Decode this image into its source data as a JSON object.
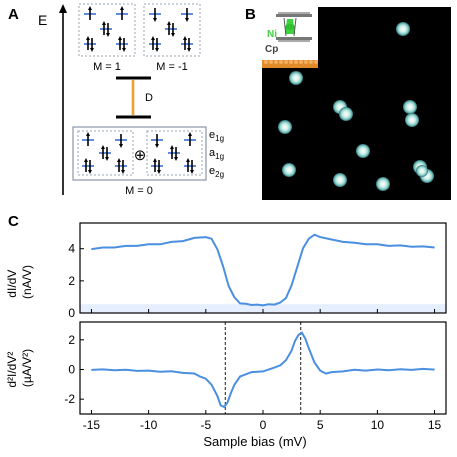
{
  "panels": {
    "a": {
      "letter": "A",
      "energy_axis_label": "E",
      "top_left_label": "M = 1",
      "top_right_label": "M = -1",
      "gap_label": "D",
      "bottom_label": "M = 0",
      "plus_symbol": "⊕",
      "orbital_labels": [
        {
          "main": "e",
          "sub": "1g"
        },
        {
          "main": "a",
          "sub": "1g"
        },
        {
          "main": "e",
          "sub": "2g"
        }
      ],
      "gap_color": "#f0a030",
      "level_color": "#3b6fd4"
    },
    "b": {
      "letter": "B",
      "ni_label": "Ni",
      "cp_label": "Cp",
      "ni_color": "#3fd23f",
      "substrate_color": "#e08a2a",
      "molecule_count_shown": 14
    },
    "c": {
      "letter": "C",
      "x_label": "Sample bias (mV)"
    }
  },
  "chart_data": [
    {
      "type": "line",
      "panel": "C-top",
      "ylabel_lines": [
        "dI/dV",
        "(nA/V)"
      ],
      "xlim": [
        -16,
        16
      ],
      "ylim": [
        0,
        5.6
      ],
      "yticks": [
        0,
        2,
        4
      ],
      "xticks": [
        -15,
        -10,
        -5,
        0,
        5,
        10,
        15
      ],
      "series": [
        {
          "color": "#4a8fe0",
          "x": [
            -15,
            -14,
            -13,
            -12,
            -11,
            -10,
            -9,
            -8,
            -7,
            -6,
            -5,
            -4.5,
            -4,
            -3.5,
            -3,
            -2.5,
            -2,
            -1.5,
            -1,
            -0.5,
            0,
            0.5,
            1,
            1.5,
            2,
            2.5,
            3,
            3.5,
            4,
            4.5,
            5,
            6,
            7,
            8,
            9,
            10,
            11,
            12,
            13,
            14,
            15
          ],
          "y": [
            4.0,
            4.05,
            4.1,
            4.15,
            4.2,
            4.25,
            4.3,
            4.4,
            4.5,
            4.65,
            4.75,
            4.6,
            4.0,
            2.9,
            1.7,
            0.95,
            0.62,
            0.55,
            0.52,
            0.5,
            0.5,
            0.52,
            0.55,
            0.62,
            0.95,
            1.7,
            2.9,
            4.0,
            4.65,
            4.85,
            4.75,
            4.55,
            4.45,
            4.35,
            4.3,
            4.25,
            4.2,
            4.18,
            4.15,
            4.12,
            4.1
          ]
        }
      ]
    },
    {
      "type": "line",
      "panel": "C-bottom",
      "ylabel_lines": [
        "d²I/dV²",
        "(µA/V²)"
      ],
      "xlim": [
        -16,
        16
      ],
      "ylim": [
        -3.0,
        3.2
      ],
      "yticks": [
        -2,
        0,
        2
      ],
      "xticks": [
        -15,
        -10,
        -5,
        0,
        5,
        10,
        15
      ],
      "dashed_markers_x": [
        -3.3,
        3.3
      ],
      "series": [
        {
          "color": "#4a8fe0",
          "x": [
            -15,
            -14,
            -13,
            -12,
            -11,
            -10,
            -9,
            -8,
            -7,
            -6,
            -5.5,
            -5,
            -4.5,
            -4,
            -3.7,
            -3.4,
            -3.1,
            -2.8,
            -2.5,
            -2,
            -1.5,
            -1,
            0,
            1,
            1.5,
            2,
            2.5,
            2.8,
            3.1,
            3.4,
            3.7,
            4,
            4.5,
            5,
            5.5,
            6,
            7,
            8,
            9,
            10,
            11,
            12,
            13,
            14,
            15
          ],
          "y": [
            0.0,
            -0.02,
            -0.03,
            -0.05,
            -0.07,
            -0.1,
            -0.12,
            -0.15,
            -0.2,
            -0.3,
            -0.45,
            -0.65,
            -1.0,
            -1.8,
            -2.4,
            -2.55,
            -2.2,
            -1.6,
            -1.0,
            -0.5,
            -0.3,
            -0.2,
            -0.1,
            0.1,
            0.3,
            0.6,
            1.3,
            1.9,
            2.35,
            2.45,
            2.1,
            1.4,
            0.5,
            -0.1,
            -0.25,
            -0.2,
            -0.1,
            -0.05,
            -0.05,
            -0.03,
            -0.02,
            -0.01,
            0.0,
            0.01,
            0.02
          ]
        }
      ]
    }
  ]
}
